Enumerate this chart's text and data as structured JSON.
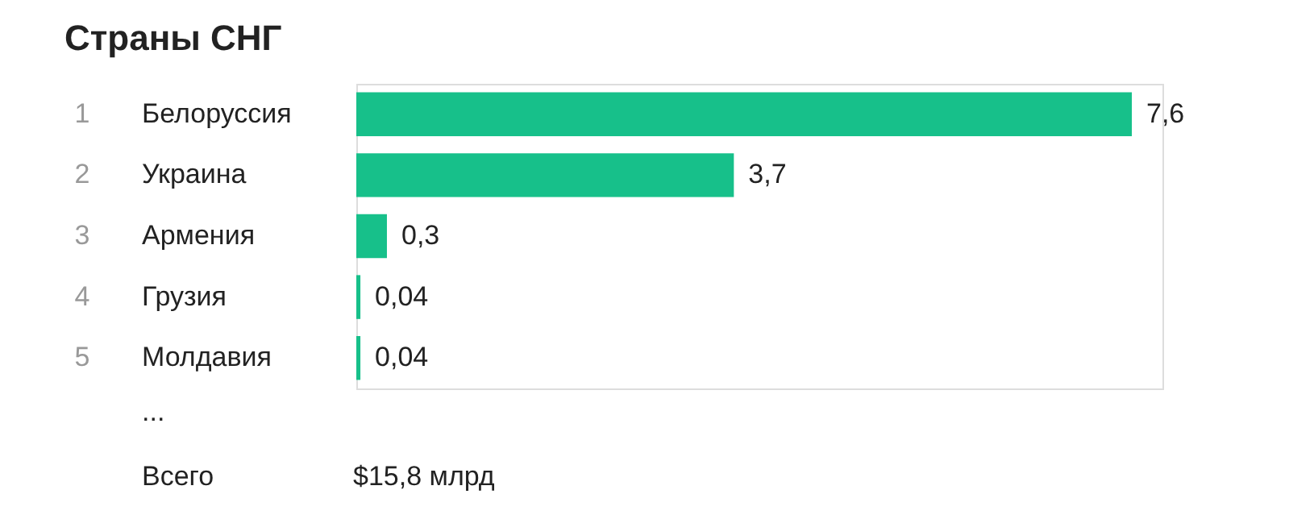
{
  "chart_data": {
    "type": "bar",
    "orientation": "horizontal",
    "title": "Страны СНГ",
    "categories": [
      "Белоруссия",
      "Украина",
      "Армения",
      "Грузия",
      "Молдавия"
    ],
    "values": [
      7.6,
      3.7,
      0.3,
      0.04,
      0.04
    ],
    "value_labels": [
      "7,6",
      "3,7",
      "0,3",
      "0,04",
      "0,04"
    ],
    "color": "#17c08a",
    "annotations": [
      "1",
      "2",
      "3",
      "4",
      "5",
      "...",
      "Всего",
      "$15,8 млрд"
    ]
  }
}
